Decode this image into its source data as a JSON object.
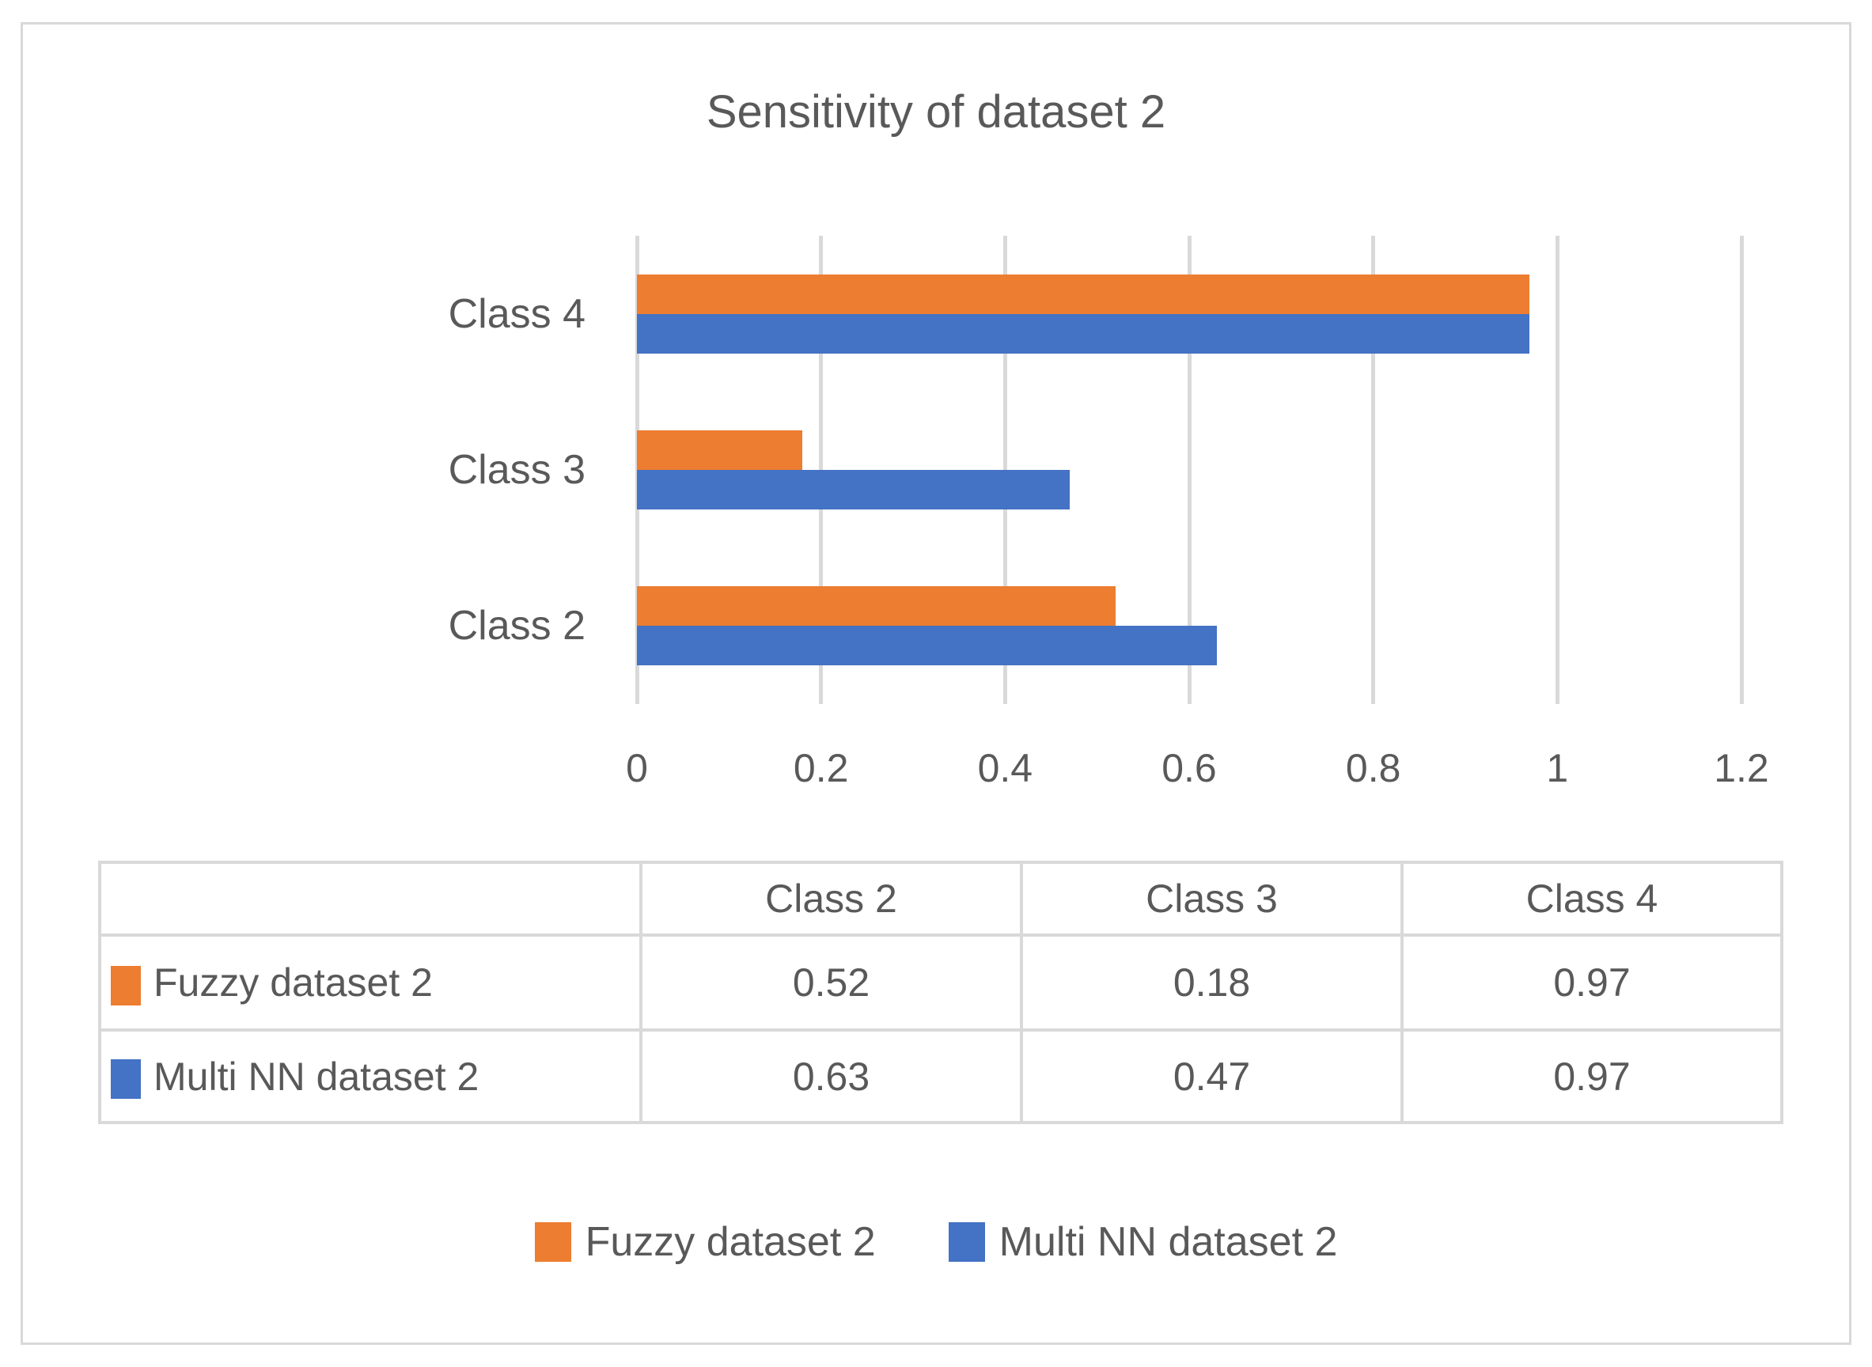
{
  "title": "Sensitivity of dataset 2",
  "colors": {
    "series_fuzzy": "#ED7D31",
    "series_multi_nn": "#4472C4",
    "gridline": "#D9D9D9",
    "table_border": "#D9D9D9",
    "text": "#595959"
  },
  "chart_data": {
    "type": "bar",
    "orientation": "horizontal",
    "title": "Sensitivity of dataset 2",
    "categories": [
      "Class 2",
      "Class 3",
      "Class 4"
    ],
    "category_display_order_top_to_bottom": [
      "Class 4",
      "Class 3",
      "Class 2"
    ],
    "series": [
      {
        "name": "Fuzzy dataset 2",
        "color": "#ED7D31",
        "values": [
          0.52,
          0.18,
          0.97
        ]
      },
      {
        "name": "Multi NN dataset 2",
        "color": "#4472C4",
        "values": [
          0.63,
          0.47,
          0.97
        ]
      }
    ],
    "xlim": [
      0,
      1.2
    ],
    "xtick_values": [
      0,
      0.2,
      0.4,
      0.6,
      0.8,
      1,
      1.2
    ],
    "xtick_labels": [
      "0",
      "0.2",
      "0.4",
      "0.6",
      "0.8",
      "1",
      "1.2"
    ],
    "grid": true,
    "legend_position": "bottom"
  },
  "data_table": {
    "corner_label": "",
    "column_headers": [
      "Class 2",
      "Class 3",
      "Class 4"
    ],
    "rows": [
      {
        "label": "Fuzzy dataset 2",
        "color": "#ED7D31",
        "values": [
          "0.52",
          "0.18",
          "0.97"
        ]
      },
      {
        "label": "Multi NN dataset 2",
        "color": "#4472C4",
        "values": [
          "0.63",
          "0.47",
          "0.97"
        ]
      }
    ]
  },
  "legend": {
    "items": [
      {
        "label": "Fuzzy dataset 2",
        "color": "#ED7D31"
      },
      {
        "label": "Multi NN dataset 2",
        "color": "#4472C4"
      }
    ]
  }
}
